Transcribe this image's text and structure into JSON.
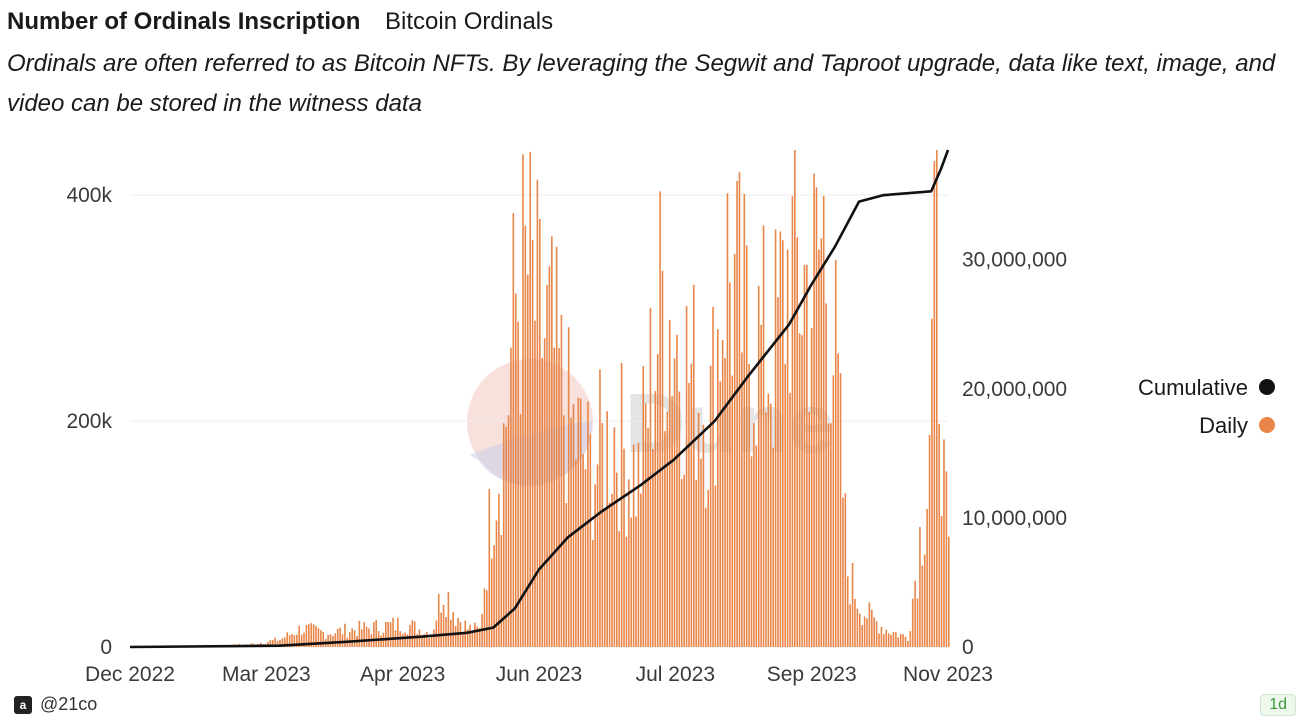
{
  "header": {
    "title": "Number of Ordinals Inscription",
    "subtitle": "Bitcoin Ordinals",
    "description": "Ordinals are often referred to as Bitcoin NFTs. By leveraging the Segwit and Taproot upgrade, data like text, image, and video can be stored in the witness data"
  },
  "footer": {
    "author": "@21co",
    "logo_glyph": "a",
    "badge": "1d"
  },
  "watermark": "Dune",
  "colors": {
    "daily": "#E8864A",
    "cumulative": "#111111"
  },
  "chart_data": {
    "type": "bar",
    "title": "Number of Ordinals Inscription",
    "x_ticks": [
      "Dec 2022",
      "Mar 2023",
      "Apr 2023",
      "Jun 2023",
      "Jul 2023",
      "Sep 2023",
      "Nov 2023"
    ],
    "y_left": {
      "ticks": [
        "0",
        "200k",
        "400k"
      ],
      "range": [
        0,
        440000
      ]
    },
    "y_right": {
      "ticks": [
        "0",
        "10,000,000",
        "20,000,000",
        "30,000,000"
      ],
      "range": [
        0,
        38500000
      ]
    },
    "legend": {
      "position": "right",
      "entries": [
        "Cumulative",
        "Daily"
      ]
    },
    "x_range": [
      "2022-12-01",
      "2023-11-06"
    ],
    "series": [
      {
        "name": "Daily",
        "type": "bar",
        "axis": "left",
        "points": [
          [
            "2022-12-15",
            0
          ],
          [
            "2023-01-01",
            500
          ],
          [
            "2023-01-20",
            3000
          ],
          [
            "2023-02-01",
            8000
          ],
          [
            "2023-02-10",
            20000
          ],
          [
            "2023-02-20",
            15000
          ],
          [
            "2023-03-01",
            18000
          ],
          [
            "2023-03-15",
            22000
          ],
          [
            "2023-03-25",
            25000
          ],
          [
            "2023-04-01",
            18000
          ],
          [
            "2023-04-05",
            15000
          ],
          [
            "2023-04-10",
            65000
          ],
          [
            "2023-04-15",
            35000
          ],
          [
            "2023-04-20",
            20000
          ],
          [
            "2023-04-25",
            18000
          ],
          [
            "2023-05-01",
            180000
          ],
          [
            "2023-05-05",
            220000
          ],
          [
            "2023-05-10",
            370000
          ],
          [
            "2023-05-15",
            400000
          ],
          [
            "2023-05-20",
            340000
          ],
          [
            "2023-05-25",
            320000
          ],
          [
            "2023-06-01",
            240000
          ],
          [
            "2023-06-10",
            190000
          ],
          [
            "2023-06-20",
            230000
          ],
          [
            "2023-06-30",
            180000
          ],
          [
            "2023-07-10",
            380000
          ],
          [
            "2023-07-20",
            300000
          ],
          [
            "2023-07-30",
            250000
          ],
          [
            "2023-08-05",
            410000
          ],
          [
            "2023-08-15",
            330000
          ],
          [
            "2023-08-25",
            310000
          ],
          [
            "2023-09-01",
            410000
          ],
          [
            "2023-09-10",
            380000
          ],
          [
            "2023-09-15",
            440000
          ],
          [
            "2023-09-20",
            300000
          ],
          [
            "2023-09-25",
            80000
          ],
          [
            "2023-10-01",
            40000
          ],
          [
            "2023-10-10",
            20000
          ],
          [
            "2023-10-20",
            10000
          ],
          [
            "2023-10-28",
            180000
          ],
          [
            "2023-11-01",
            430000
          ],
          [
            "2023-11-04",
            170000
          ],
          [
            "2023-11-06",
            90000
          ]
        ]
      },
      {
        "name": "Cumulative",
        "type": "line",
        "axis": "right",
        "points": [
          [
            "2022-12-01",
            0
          ],
          [
            "2023-02-01",
            100000
          ],
          [
            "2023-03-01",
            400000
          ],
          [
            "2023-04-01",
            800000
          ],
          [
            "2023-04-20",
            1100000
          ],
          [
            "2023-05-01",
            1500000
          ],
          [
            "2023-05-10",
            3000000
          ],
          [
            "2023-05-20",
            6000000
          ],
          [
            "2023-06-01",
            8500000
          ],
          [
            "2023-06-15",
            10500000
          ],
          [
            "2023-07-01",
            12500000
          ],
          [
            "2023-07-15",
            14500000
          ],
          [
            "2023-08-01",
            17500000
          ],
          [
            "2023-08-15",
            21000000
          ],
          [
            "2023-09-01",
            25000000
          ],
          [
            "2023-09-10",
            28000000
          ],
          [
            "2023-09-20",
            31000000
          ],
          [
            "2023-09-30",
            34500000
          ],
          [
            "2023-10-10",
            35000000
          ],
          [
            "2023-10-30",
            35300000
          ],
          [
            "2023-11-03",
            37000000
          ],
          [
            "2023-11-06",
            38500000
          ]
        ]
      }
    ]
  }
}
